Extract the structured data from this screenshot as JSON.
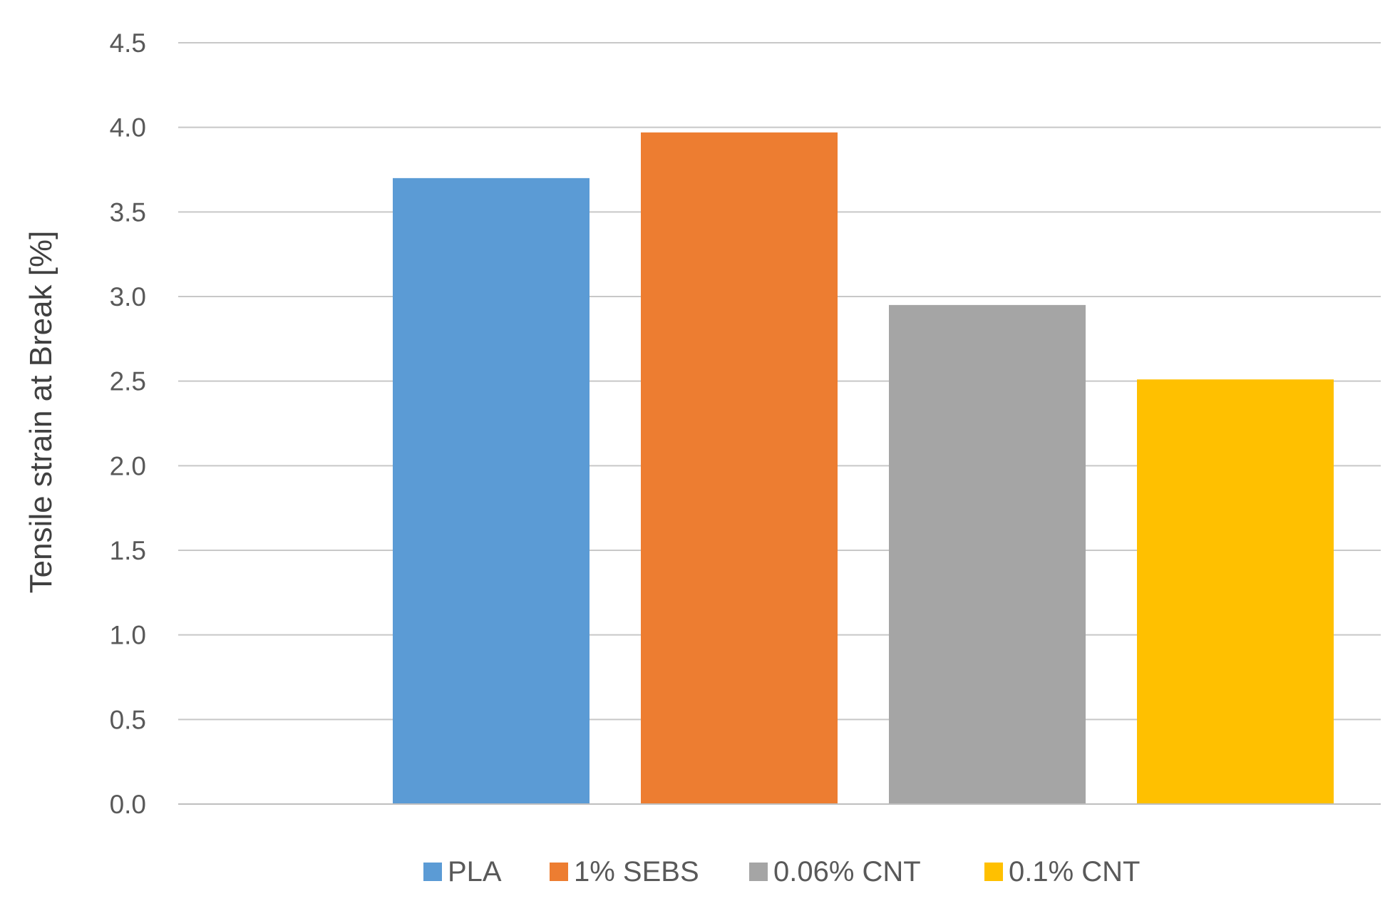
{
  "chart_data": {
    "type": "bar",
    "title": "",
    "xlabel": "",
    "ylabel": "Tensile strain at Break [%]",
    "ylim": [
      0,
      4.5
    ],
    "ytick_step": 0.5,
    "ytick_labels": [
      "0.0",
      "0.5",
      "1.0",
      "1.5",
      "2.0",
      "2.5",
      "3.0",
      "3.5",
      "4.0",
      "4.5"
    ],
    "grid": true,
    "legend_position": "bottom",
    "series": [
      {
        "name": "PLA",
        "value": 3.7,
        "color": "#5b9bd5"
      },
      {
        "name": "1% SEBS",
        "value": 3.97,
        "color": "#ed7d31"
      },
      {
        "name": "0.06% CNT",
        "value": 2.95,
        "color": "#a5a5a5"
      },
      {
        "name": "0.1% CNT",
        "value": 2.51,
        "color": "#ffc000"
      }
    ]
  }
}
